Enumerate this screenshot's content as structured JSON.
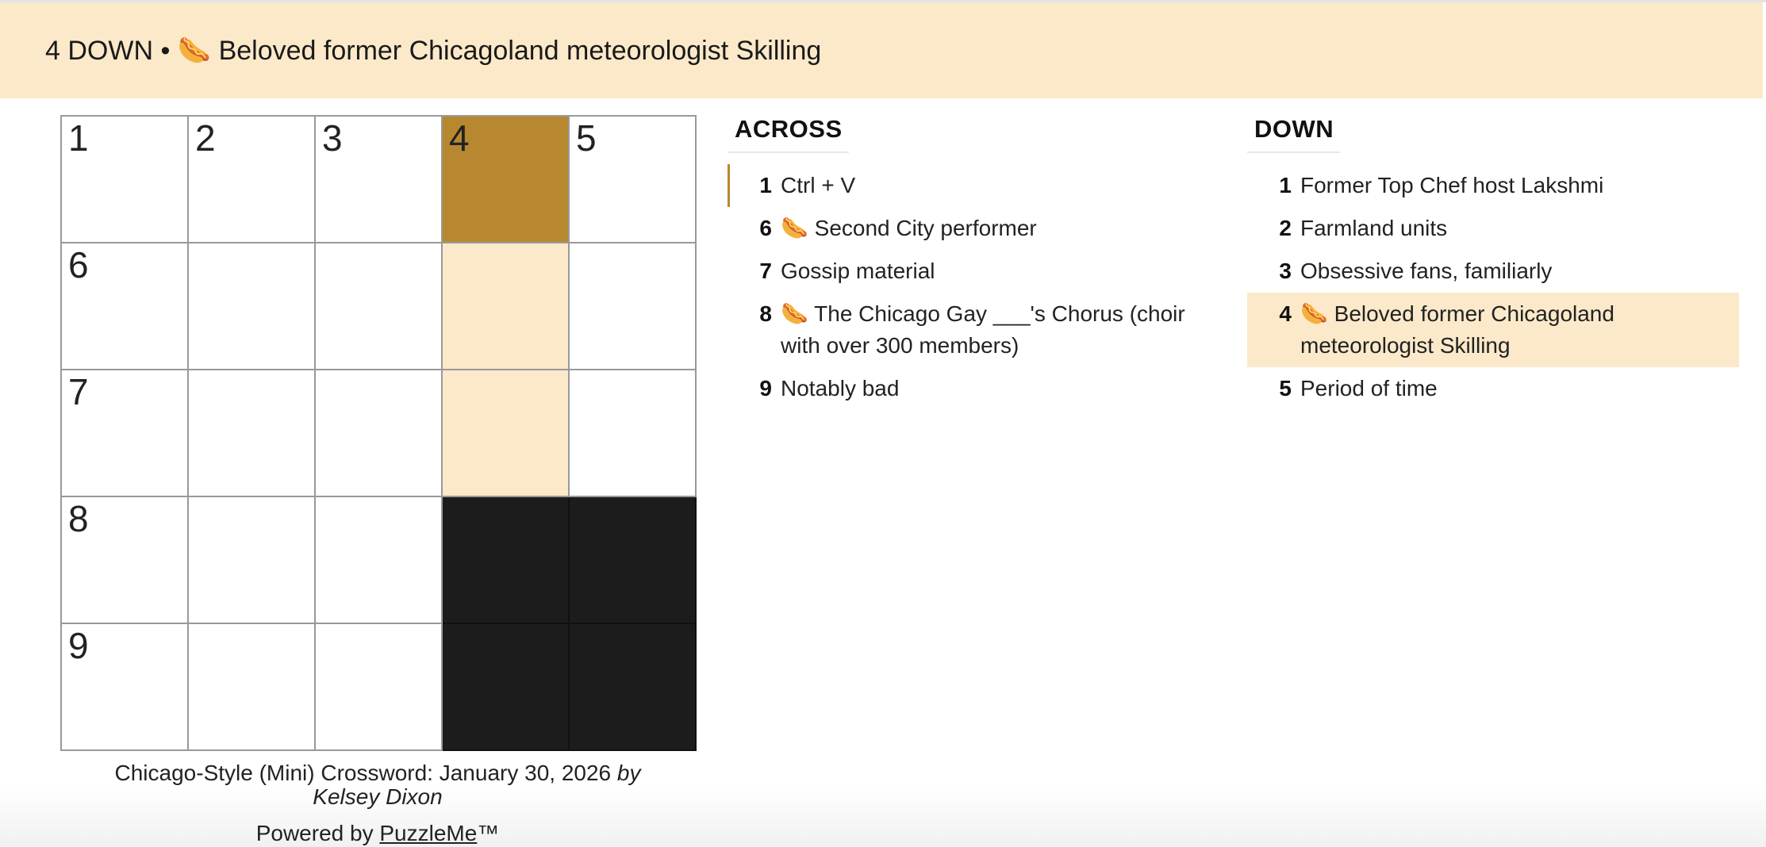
{
  "header": {
    "current_clue": "4 DOWN • 🌭 Beloved former Chicagoland meteorologist Skilling"
  },
  "grid": {
    "numbers": [
      "1",
      "2",
      "3",
      "4",
      "5",
      "6",
      "7",
      "8",
      "9"
    ]
  },
  "across": {
    "title": "ACROSS",
    "clues": [
      {
        "num": "1",
        "text": "Ctrl + V"
      },
      {
        "num": "6",
        "text": "🌭 Second City performer"
      },
      {
        "num": "7",
        "text": "Gossip material"
      },
      {
        "num": "8",
        "text": "🌭 The Chicago Gay ___'s Chorus (choir with over 300 members)"
      },
      {
        "num": "9",
        "text": "Notably bad"
      }
    ]
  },
  "down": {
    "title": "DOWN",
    "clues": [
      {
        "num": "1",
        "text": "Former Top Chef host Lakshmi"
      },
      {
        "num": "2",
        "text": "Farmland units"
      },
      {
        "num": "3",
        "text": "Obsessive fans, familiarly"
      },
      {
        "num": "4",
        "text": "🌭 Beloved former Chicagoland meteorologist Skilling"
      },
      {
        "num": "5",
        "text": "Period of time"
      }
    ]
  },
  "footer": {
    "title": "Chicago-Style (Mini) Crossword: January 30, 2026",
    "by": "by",
    "author": "Kelsey Dixon",
    "powered_prefix": "Powered by",
    "powered_link": "PuzzleMe",
    "trademark": "™"
  },
  "colors": {
    "selected_cell": "#b88830",
    "highlight": "#fbe9c9",
    "black_cell": "#1c1c1c"
  }
}
